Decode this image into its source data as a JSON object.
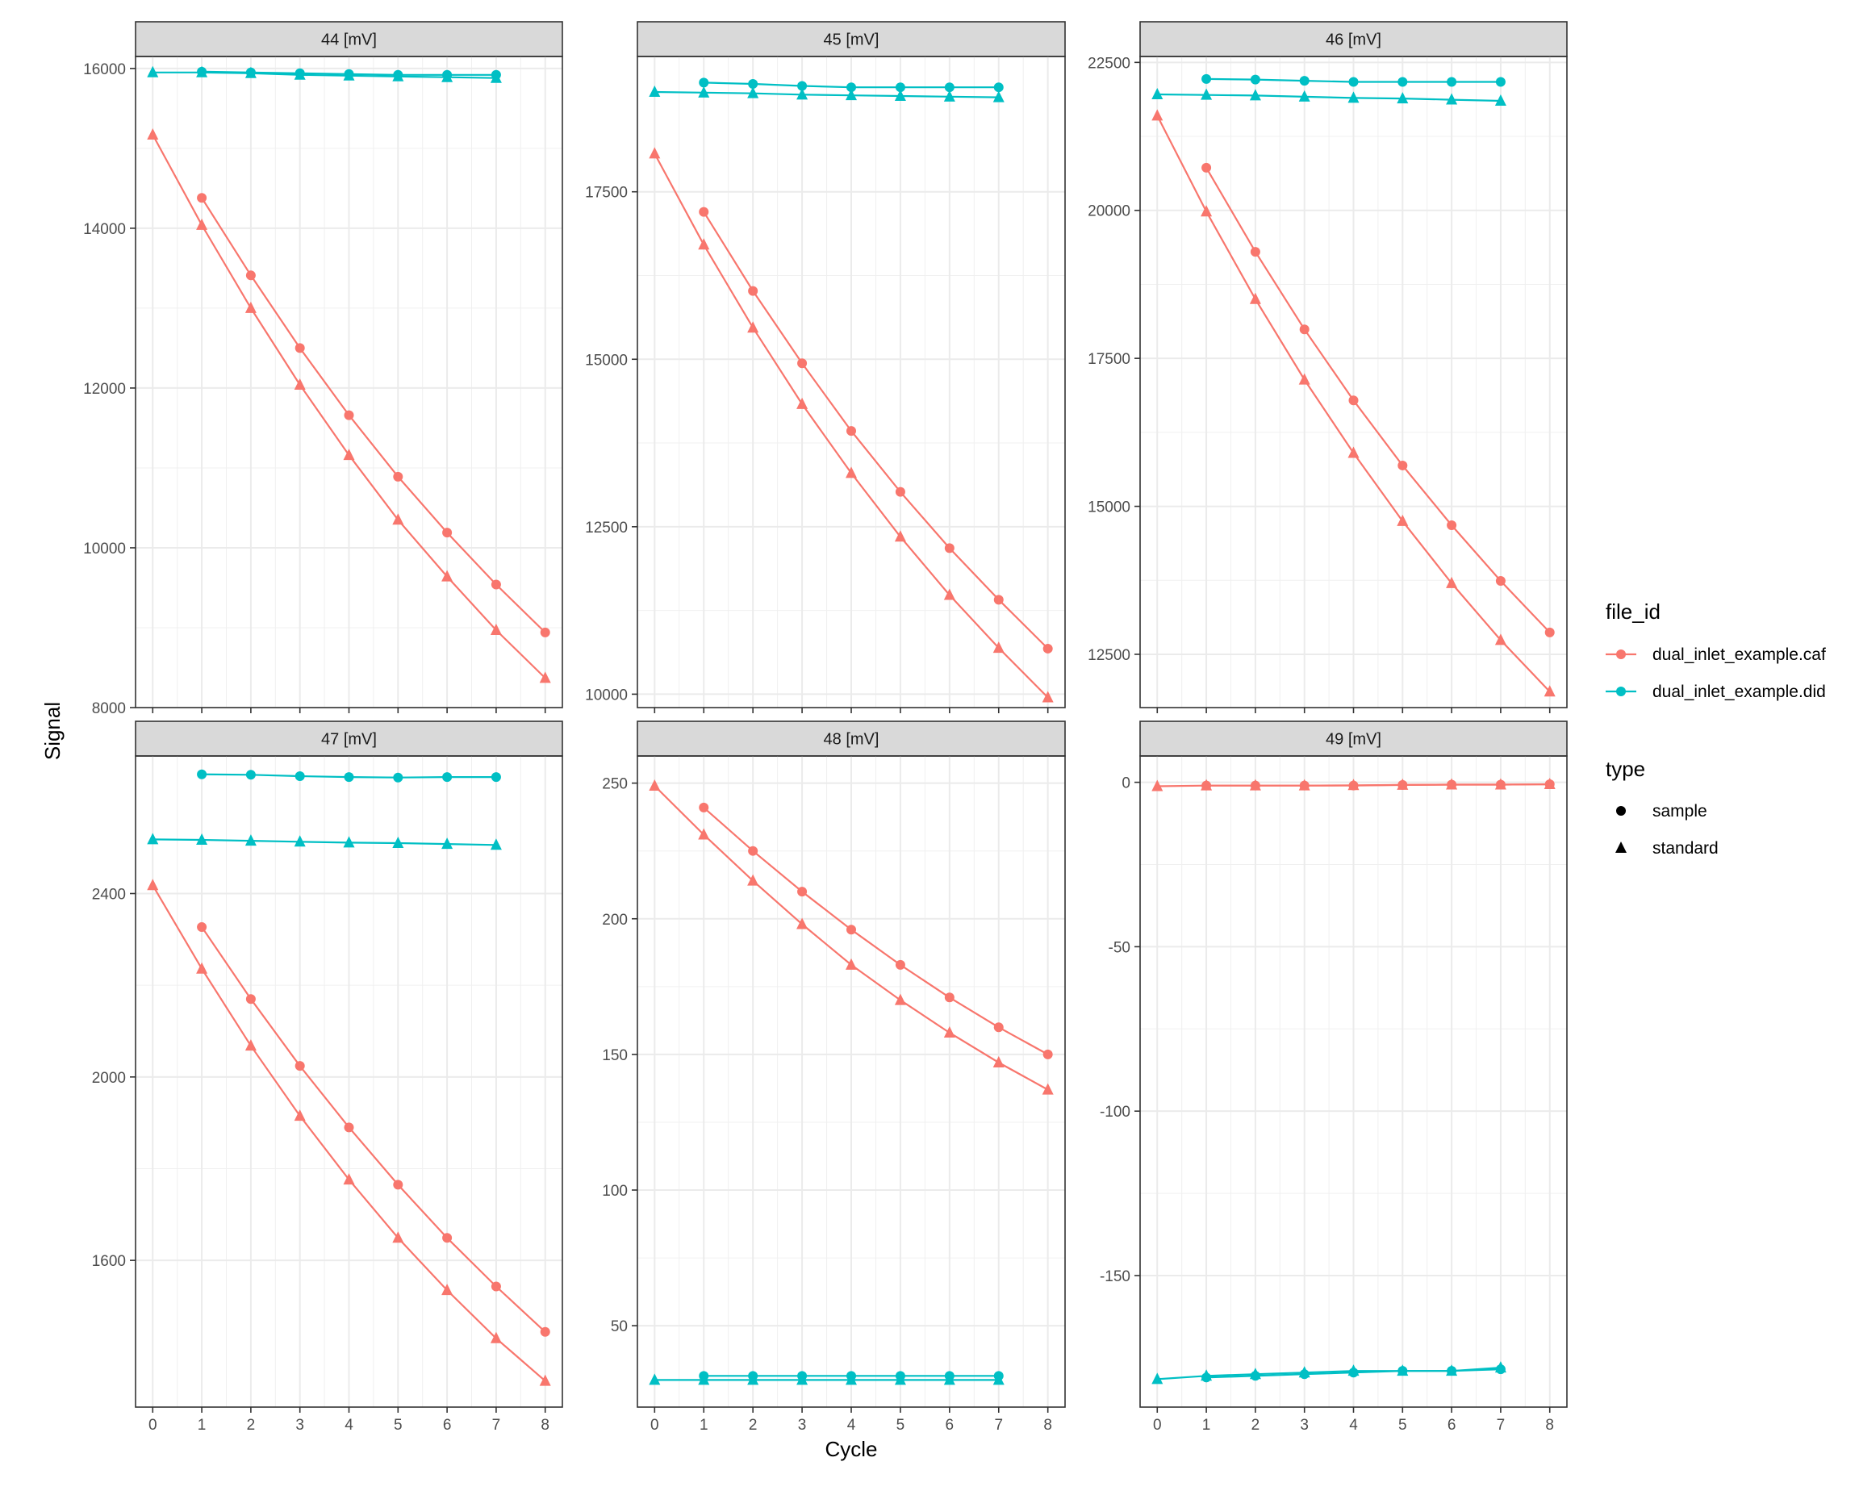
{
  "chart_data": {
    "type": "line",
    "xlabel": "Cycle",
    "ylabel": "Signal",
    "grid": true,
    "legend_position": "right",
    "colors": {
      "dual_inlet_example.caf": "#F8766D",
      "dual_inlet_example.did": "#00BFC4"
    },
    "legend": {
      "file_id": {
        "title": "file_id",
        "items": [
          "dual_inlet_example.caf",
          "dual_inlet_example.did"
        ]
      },
      "type": {
        "title": "type",
        "items": [
          {
            "label": "sample",
            "shape": "circle"
          },
          {
            "label": "standard",
            "shape": "triangle"
          }
        ]
      }
    },
    "x_ticks": [
      0,
      1,
      2,
      3,
      4,
      5,
      6,
      7,
      8
    ],
    "xlim": [
      -0.35,
      8.35
    ],
    "facets": [
      {
        "title": "44 [mV]",
        "ylim": [
          8000,
          16150
        ],
        "y_ticks": [
          8000,
          10000,
          12000,
          14000,
          16000
        ],
        "series": [
          {
            "file_id": "dual_inlet_example.caf",
            "type": "sample",
            "x": [
              1,
              2,
              3,
              4,
              5,
              6,
              7,
              8
            ],
            "y": [
              14380,
              13410,
              12500,
              11660,
              10890,
              10190,
              9540,
              8940
            ]
          },
          {
            "file_id": "dual_inlet_example.caf",
            "type": "standard",
            "x": [
              0,
              1,
              2,
              3,
              4,
              5,
              6,
              7,
              8
            ],
            "y": [
              15170,
              14040,
              13000,
              12040,
              11160,
              10350,
              9640,
              8970,
              8370
            ]
          },
          {
            "file_id": "dual_inlet_example.did",
            "type": "sample",
            "x": [
              1,
              2,
              3,
              4,
              5,
              6,
              7
            ],
            "y": [
              15960,
              15950,
              15940,
              15930,
              15920,
              15920,
              15920
            ]
          },
          {
            "file_id": "dual_inlet_example.did",
            "type": "standard",
            "x": [
              0,
              1,
              2,
              3,
              4,
              5,
              6,
              7
            ],
            "y": [
              15950,
              15950,
              15940,
              15920,
              15910,
              15900,
              15890,
              15880
            ]
          }
        ]
      },
      {
        "title": "45 [mV]",
        "ylim": [
          9800,
          19520
        ],
        "y_ticks": [
          10000,
          12500,
          15000,
          17500
        ],
        "series": [
          {
            "file_id": "dual_inlet_example.caf",
            "type": "sample",
            "x": [
              1,
              2,
              3,
              4,
              5,
              6,
              7,
              8
            ],
            "y": [
              17200,
              16020,
              14940,
              13930,
              13020,
              12180,
              11410,
              10680
            ]
          },
          {
            "file_id": "dual_inlet_example.caf",
            "type": "standard",
            "x": [
              0,
              1,
              2,
              3,
              4,
              5,
              6,
              7,
              8
            ],
            "y": [
              18070,
              16710,
              15470,
              14330,
              13300,
              12350,
              11480,
              10690,
              9950
            ]
          },
          {
            "file_id": "dual_inlet_example.did",
            "type": "sample",
            "x": [
              1,
              2,
              3,
              4,
              5,
              6,
              7
            ],
            "y": [
              19130,
              19110,
              19080,
              19060,
              19060,
              19060,
              19060
            ]
          },
          {
            "file_id": "dual_inlet_example.did",
            "type": "standard",
            "x": [
              0,
              1,
              2,
              3,
              4,
              5,
              6,
              7
            ],
            "y": [
              18990,
              18980,
              18970,
              18950,
              18940,
              18930,
              18920,
              18910
            ]
          }
        ]
      },
      {
        "title": "46 [mV]",
        "ylim": [
          11600,
          22600
        ],
        "y_ticks": [
          12500,
          15000,
          17500,
          20000,
          22500
        ],
        "series": [
          {
            "file_id": "dual_inlet_example.caf",
            "type": "sample",
            "x": [
              1,
              2,
              3,
              4,
              5,
              6,
              7,
              8
            ],
            "y": [
              20720,
              19300,
              17990,
              16790,
              15690,
              14680,
              13740,
              12870
            ]
          },
          {
            "file_id": "dual_inlet_example.caf",
            "type": "standard",
            "x": [
              0,
              1,
              2,
              3,
              4,
              5,
              6,
              7,
              8
            ],
            "y": [
              21600,
              19980,
              18500,
              17140,
              15900,
              14750,
              13700,
              12740,
              11870
            ]
          },
          {
            "file_id": "dual_inlet_example.did",
            "type": "sample",
            "x": [
              1,
              2,
              3,
              4,
              5,
              6,
              7
            ],
            "y": [
              22220,
              22210,
              22190,
              22170,
              22170,
              22170,
              22170
            ]
          },
          {
            "file_id": "dual_inlet_example.did",
            "type": "standard",
            "x": [
              0,
              1,
              2,
              3,
              4,
              5,
              6,
              7
            ],
            "y": [
              21960,
              21950,
              21940,
              21920,
              21900,
              21890,
              21870,
              21850
            ]
          }
        ]
      },
      {
        "title": "47 [mV]",
        "ylim": [
          1280,
          2700
        ],
        "y_ticks": [
          1600,
          2000,
          2400
        ],
        "series": [
          {
            "file_id": "dual_inlet_example.caf",
            "type": "sample",
            "x": [
              1,
              2,
              3,
              4,
              5,
              6,
              7,
              8
            ],
            "y": [
              2327,
              2170,
              2024,
              1890,
              1765,
              1649,
              1543,
              1444
            ]
          },
          {
            "file_id": "dual_inlet_example.caf",
            "type": "standard",
            "x": [
              0,
              1,
              2,
              3,
              4,
              5,
              6,
              7,
              8
            ],
            "y": [
              2418,
              2236,
              2068,
              1915,
              1776,
              1649,
              1535,
              1430,
              1337
            ]
          },
          {
            "file_id": "dual_inlet_example.did",
            "type": "sample",
            "x": [
              1,
              2,
              3,
              4,
              5,
              6,
              7
            ],
            "y": [
              2660,
              2659,
              2656,
              2654,
              2653,
              2654,
              2654
            ]
          },
          {
            "file_id": "dual_inlet_example.did",
            "type": "standard",
            "x": [
              0,
              1,
              2,
              3,
              4,
              5,
              6,
              7
            ],
            "y": [
              2518,
              2517,
              2515,
              2513,
              2511,
              2510,
              2508,
              2506
            ]
          }
        ]
      },
      {
        "title": "48 [mV]",
        "ylim": [
          20,
          260
        ],
        "y_ticks": [
          50,
          100,
          150,
          200,
          250
        ],
        "series": [
          {
            "file_id": "dual_inlet_example.caf",
            "type": "sample",
            "x": [
              1,
              2,
              3,
              4,
              5,
              6,
              7,
              8
            ],
            "y": [
              241,
              225,
              210,
              196,
              183,
              171,
              160,
              150
            ]
          },
          {
            "file_id": "dual_inlet_example.caf",
            "type": "standard",
            "x": [
              0,
              1,
              2,
              3,
              4,
              5,
              6,
              7,
              8
            ],
            "y": [
              249,
              231,
              214,
              198,
              183,
              170,
              158,
              147,
              137
            ]
          },
          {
            "file_id": "dual_inlet_example.did",
            "type": "sample",
            "x": [
              1,
              2,
              3,
              4,
              5,
              6,
              7
            ],
            "y": [
              31.5,
              31.5,
              31.5,
              31.5,
              31.5,
              31.5,
              31.5
            ]
          },
          {
            "file_id": "dual_inlet_example.did",
            "type": "standard",
            "x": [
              0,
              1,
              2,
              3,
              4,
              5,
              6,
              7
            ],
            "y": [
              30,
              30,
              30,
              30,
              30,
              30,
              30,
              30
            ]
          }
        ]
      },
      {
        "title": "49 [mV]",
        "ylim": [
          -190,
          8
        ],
        "y_ticks": [
          -150,
          -100,
          -50,
          0
        ],
        "series": [
          {
            "file_id": "dual_inlet_example.caf",
            "type": "sample",
            "x": [
              1,
              2,
              3,
              4,
              5,
              6,
              7,
              8
            ],
            "y": [
              -1,
              -1,
              -1,
              -1,
              -0.8,
              -0.7,
              -0.7,
              -0.6
            ]
          },
          {
            "file_id": "dual_inlet_example.caf",
            "type": "standard",
            "x": [
              0,
              1,
              2,
              3,
              4,
              5,
              6,
              7,
              8
            ],
            "y": [
              -1.2,
              -1,
              -1,
              -1,
              -0.9,
              -0.8,
              -0.7,
              -0.7,
              -0.6
            ]
          },
          {
            "file_id": "dual_inlet_example.did",
            "type": "sample",
            "x": [
              1,
              2,
              3,
              4,
              5,
              6,
              7
            ],
            "y": [
              -181,
              -180.5,
              -180,
              -179.5,
              -179,
              -179,
              -178.5
            ]
          },
          {
            "file_id": "dual_inlet_example.did",
            "type": "standard",
            "x": [
              0,
              1,
              2,
              3,
              4,
              5,
              6,
              7
            ],
            "y": [
              -181.5,
              -180.5,
              -180,
              -179.5,
              -179,
              -179,
              -179,
              -178
            ]
          }
        ]
      }
    ]
  }
}
